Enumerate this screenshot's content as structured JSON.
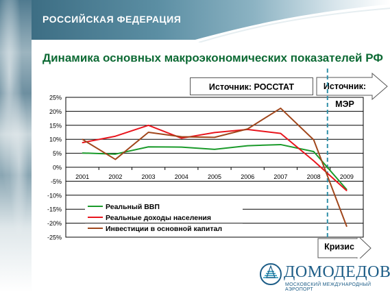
{
  "header": {
    "title": "РОССИЙСКАЯ ФЕДЕРАЦИЯ"
  },
  "slide": {
    "title": "Динамика основных макроэкономических показателей РФ"
  },
  "sources": {
    "rosstat": "Источник: РОССТАТ",
    "mer": "Источник: МЭР"
  },
  "crisis_label": "Кризис",
  "logo": {
    "name": "ДОМОДЕДОВО",
    "subtitle": "МОСКОВСКИЙ МЕЖДУНАРОДНЫЙ АЭРОПОРТ"
  },
  "colors": {
    "gdp": "#1a9a2a",
    "income": "#e8141c",
    "investment": "#a0461b",
    "title_green": "#0d6a34",
    "divider": "#2f8fa8"
  },
  "chart_data": {
    "type": "line",
    "categories": [
      "2001",
      "2002",
      "2003",
      "2004",
      "2005",
      "2006",
      "2007",
      "2008",
      "2009"
    ],
    "y_ticks": [
      "25%",
      "20%",
      "15%",
      "10%",
      "5%",
      "0%",
      "-5%",
      "-10%",
      "-15%",
      "-20%",
      "-25%"
    ],
    "ylim": [
      -25,
      25
    ],
    "grid": true,
    "legend_position": "bottom-left",
    "forecast_divider_between": [
      "2008",
      "2009"
    ],
    "series": [
      {
        "name": "Реальный ВВП",
        "color_key": "gdp",
        "values": [
          5.1,
          4.7,
          7.3,
          7.2,
          6.4,
          7.7,
          8.1,
          5.6,
          -8.0
        ]
      },
      {
        "name": "Реальные доходы населения",
        "color_key": "income",
        "values": [
          8.8,
          11.1,
          15.0,
          10.4,
          12.4,
          13.5,
          12.1,
          2.3,
          -8.4
        ]
      },
      {
        "name": "Инвестиции в основной капитал",
        "color_key": "investment",
        "values": [
          10.0,
          2.8,
          12.5,
          10.9,
          10.7,
          13.7,
          21.1,
          9.8,
          -21.2
        ]
      }
    ]
  }
}
